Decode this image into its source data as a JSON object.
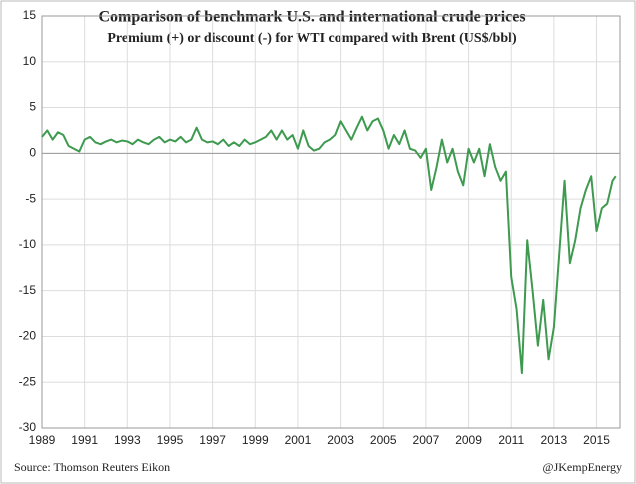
{
  "chart_data": {
    "type": "line",
    "title": "Comparison of  benchmark U.S. and international crude prices",
    "subtitle": "Premium (+) or discount (-) for WTI compared with Brent (US$/bbl)",
    "source": "Source: Thomson Reuters Eikon",
    "credit": "@JKempEnergy",
    "x": [
      1989,
      1989.25,
      1989.5,
      1989.75,
      1990,
      1990.25,
      1990.5,
      1990.75,
      1991,
      1991.25,
      1991.5,
      1991.75,
      1992,
      1992.25,
      1992.5,
      1992.75,
      1993,
      1993.25,
      1993.5,
      1993.75,
      1994,
      1994.25,
      1994.5,
      1994.75,
      1995,
      1995.25,
      1995.5,
      1995.75,
      1996,
      1996.25,
      1996.5,
      1996.75,
      1997,
      1997.25,
      1997.5,
      1997.75,
      1998,
      1998.25,
      1998.5,
      1998.75,
      1999,
      1999.25,
      1999.5,
      1999.75,
      2000,
      2000.25,
      2000.5,
      2000.75,
      2001,
      2001.25,
      2001.5,
      2001.75,
      2002,
      2002.25,
      2002.5,
      2002.75,
      2003,
      2003.25,
      2003.5,
      2003.75,
      2004,
      2004.25,
      2004.5,
      2004.75,
      2005,
      2005.25,
      2005.5,
      2005.75,
      2006,
      2006.25,
      2006.5,
      2006.75,
      2007,
      2007.25,
      2007.5,
      2007.75,
      2008,
      2008.25,
      2008.5,
      2008.75,
      2009,
      2009.25,
      2009.5,
      2009.75,
      2010,
      2010.25,
      2010.5,
      2010.75,
      2011,
      2011.25,
      2011.5,
      2011.75,
      2012,
      2012.25,
      2012.5,
      2012.75,
      2013,
      2013.25,
      2013.5,
      2013.75,
      2014,
      2014.25,
      2014.5,
      2014.75,
      2015,
      2015.25,
      2015.5,
      2015.75,
      2015.9
    ],
    "series": [
      {
        "name": "WTI-Brent",
        "color": "#3d9a4f",
        "values": [
          1.8,
          2.5,
          1.5,
          2.3,
          2.0,
          0.8,
          0.5,
          0.2,
          1.5,
          1.8,
          1.2,
          1.0,
          1.3,
          1.5,
          1.2,
          1.4,
          1.3,
          1.0,
          1.5,
          1.2,
          1.0,
          1.5,
          1.8,
          1.2,
          1.5,
          1.3,
          1.8,
          1.2,
          1.5,
          2.8,
          1.5,
          1.2,
          1.3,
          1.0,
          1.5,
          0.8,
          1.2,
          0.8,
          1.5,
          1.0,
          1.2,
          1.5,
          1.8,
          2.5,
          1.5,
          2.5,
          1.5,
          2.0,
          0.5,
          2.5,
          0.8,
          0.3,
          0.5,
          1.2,
          1.5,
          2.0,
          3.5,
          2.5,
          1.5,
          2.8,
          4.0,
          2.5,
          3.5,
          3.8,
          2.5,
          0.5,
          2.0,
          1.0,
          2.5,
          0.5,
          0.3,
          -0.5,
          0.5,
          -4.0,
          -1.5,
          1.5,
          -1.0,
          0.5,
          -2.0,
          -3.5,
          0.5,
          -1.0,
          0.5,
          -2.5,
          1.0,
          -1.5,
          -3.0,
          -2.0,
          -13.5,
          -17.0,
          -24.0,
          -9.5,
          -15.0,
          -21.0,
          -16.0,
          -22.5,
          -19.0,
          -11.0,
          -3.0,
          -12.0,
          -9.5,
          -6.0,
          -4.0,
          -2.5,
          -8.5,
          -6.0,
          -5.5,
          -3.0,
          -2.5
        ]
      }
    ],
    "xlim": [
      1989,
      2016.1
    ],
    "xticks": [
      1989,
      1991,
      1993,
      1995,
      1997,
      1999,
      2001,
      2003,
      2005,
      2007,
      2009,
      2011,
      2013,
      2015
    ],
    "ylim": [
      -30,
      15
    ],
    "yticks": [
      15,
      10,
      5,
      0,
      -5,
      -10,
      -15,
      -20,
      -25,
      -30
    ],
    "grid": true
  }
}
